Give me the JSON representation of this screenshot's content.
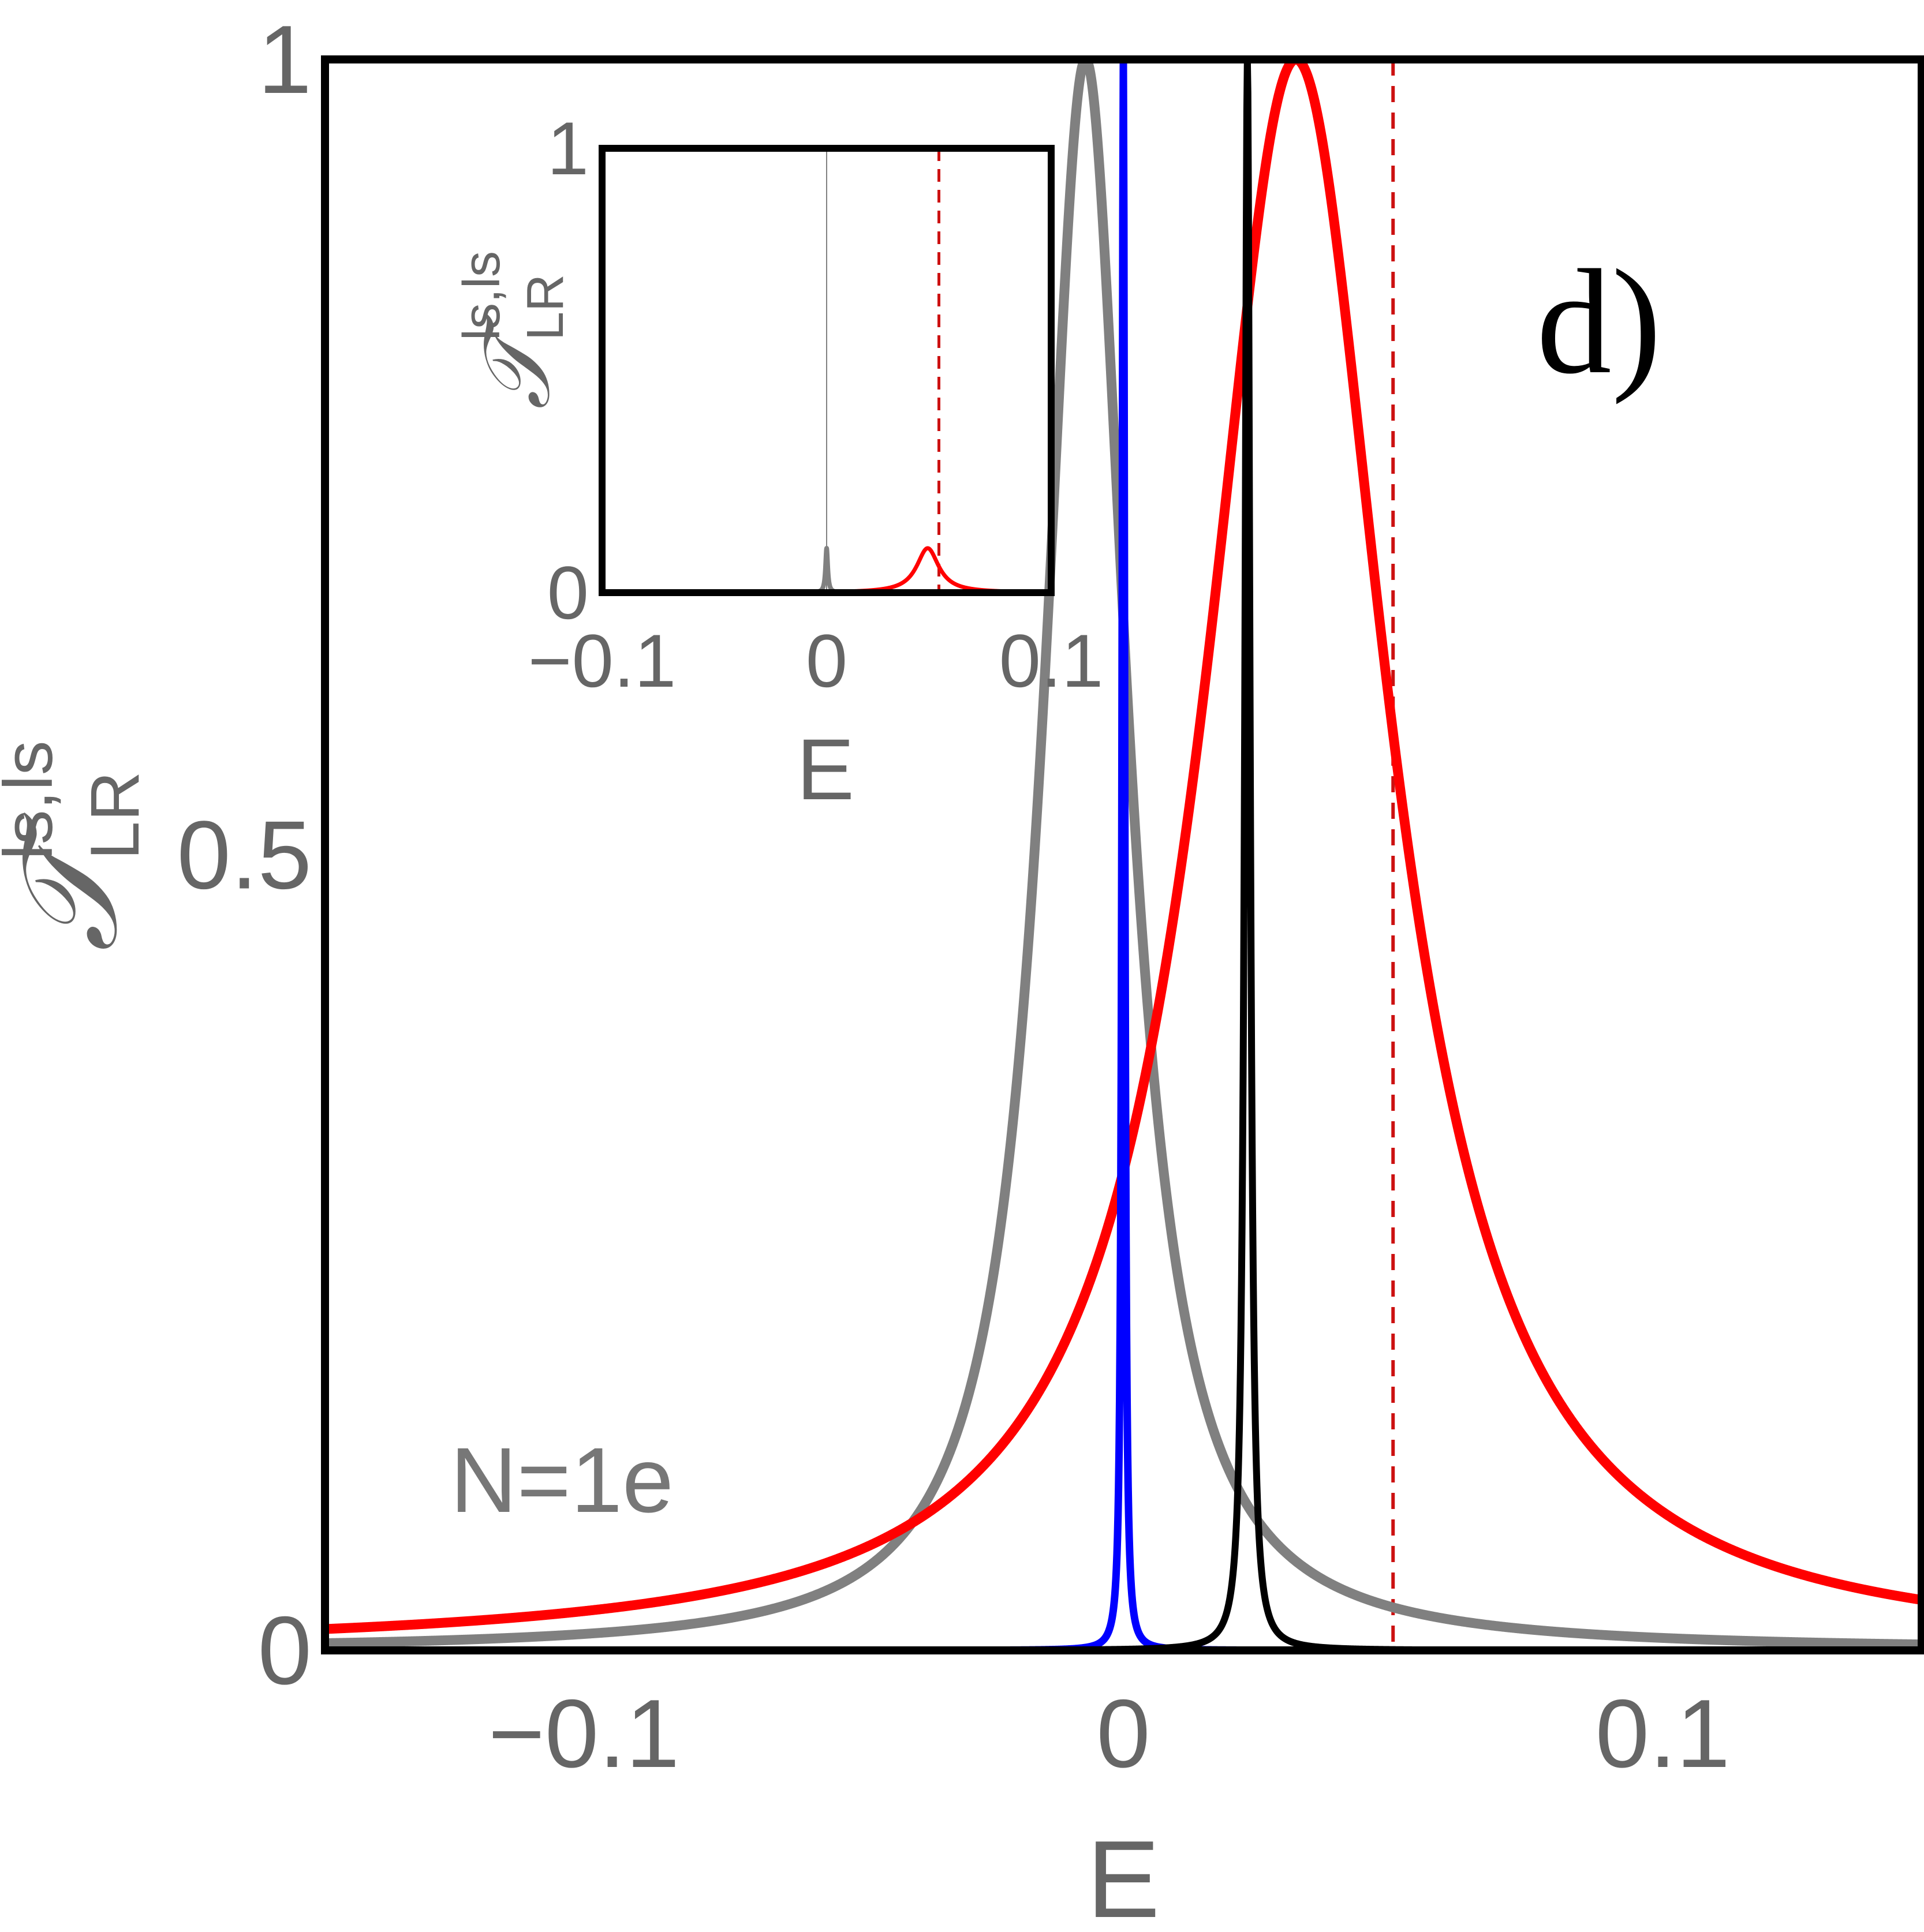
{
  "colors": {
    "frame": "#000000",
    "tick_text": "#666666",
    "gray_curve": "#808080",
    "red_curve": "#ff0000",
    "blue_curve": "#0000ff",
    "black_curve": "#000000",
    "dashed_line": "#cc1111",
    "annotation": "#777777"
  },
  "chart_data": [
    {
      "id": "main",
      "type": "line",
      "panel_label": "d)",
      "annotation": "N=1e",
      "xlabel": "E",
      "ylabel": "𝒯",
      "ylabel_sup": "ls,ls",
      "ylabel_sub": "LR",
      "xlim": [
        -0.148,
        0.148
      ],
      "ylim": [
        0,
        1
      ],
      "xticks": [
        -0.1,
        0,
        0.1
      ],
      "xtick_labels": [
        "−0.1",
        "0",
        "0.1"
      ],
      "yticks": [
        0,
        0.5,
        1
      ],
      "ytick_labels": [
        "0",
        "0.5",
        "1"
      ],
      "grid": false,
      "vlines": [
        {
          "x": 0.05,
          "style": "dashed",
          "color": "red"
        }
      ],
      "series": [
        {
          "name": "gray",
          "shape": "lorentzian",
          "center": -0.007,
          "height": 1.0,
          "half_width": 0.0095
        },
        {
          "name": "red",
          "shape": "lorentzian",
          "center": 0.032,
          "height": 1.0,
          "half_width": 0.021
        },
        {
          "name": "blue",
          "shape": "lorentzian",
          "center": 0.0,
          "height": 1.0,
          "half_width": 0.0003
        },
        {
          "name": "black",
          "shape": "lorentzian",
          "center": 0.023,
          "height": 1.0,
          "half_width": 0.0006
        }
      ]
    },
    {
      "id": "inset",
      "type": "line",
      "xlabel": "E",
      "ylabel": "𝒯",
      "ylabel_sup": "ls,ls",
      "ylabel_sub": "LR",
      "xlim": [
        -0.1,
        0.1
      ],
      "ylim": [
        0,
        1
      ],
      "xticks": [
        -0.1,
        0,
        0.1
      ],
      "xtick_labels": [
        "−0.1",
        "0",
        "0.1"
      ],
      "yticks": [
        0,
        1
      ],
      "ytick_labels": [
        "0",
        "1"
      ],
      "grid": false,
      "vlines": [
        {
          "x": 0.05,
          "style": "dashed",
          "color": "red"
        },
        {
          "x": 0.0,
          "style": "solid-thin",
          "color": "gray"
        }
      ],
      "series": [
        {
          "name": "gray",
          "shape": "lorentzian",
          "center": 0.0,
          "height": 0.1,
          "half_width": 0.0006
        },
        {
          "name": "red",
          "shape": "lorentzian",
          "center": 0.045,
          "height": 0.1,
          "half_width": 0.006
        }
      ]
    }
  ]
}
